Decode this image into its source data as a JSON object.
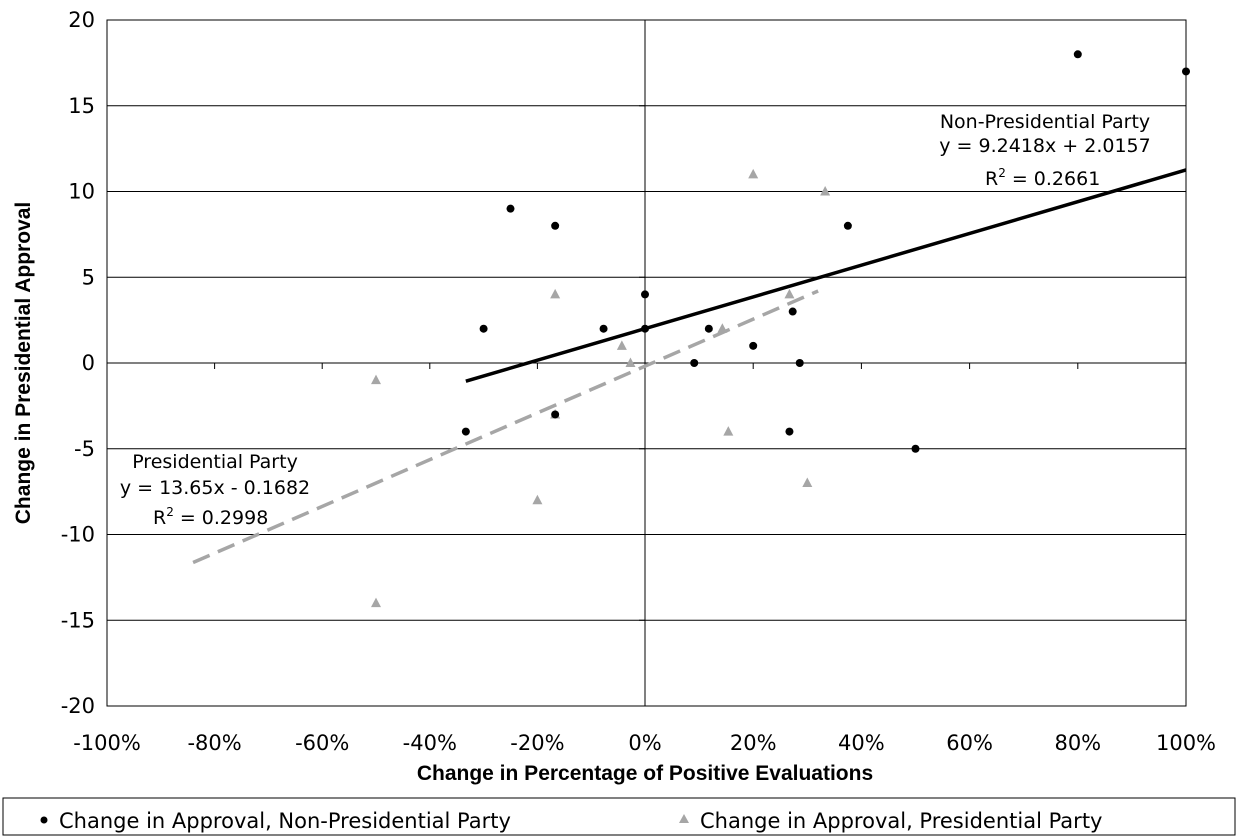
{
  "chart_data": {
    "type": "scatter",
    "title": "",
    "xlabel": "Change in Percentage of Positive Evaluations",
    "ylabel": "Change in Presidential Approval",
    "xlim": [
      -1.0,
      1.0
    ],
    "ylim": [
      -20,
      20
    ],
    "x_ticks": [
      -1.0,
      -0.8,
      -0.6,
      -0.4,
      -0.2,
      0.0,
      0.2,
      0.4,
      0.6,
      0.8,
      1.0
    ],
    "x_tick_labels": [
      "-100%",
      "-80%",
      "-60%",
      "-40%",
      "-20%",
      "0%",
      "20%",
      "40%",
      "60%",
      "80%",
      "100%"
    ],
    "y_ticks": [
      -20,
      -15,
      -10,
      -5,
      0,
      5,
      10,
      15,
      20
    ],
    "y_tick_labels": [
      "-20",
      "-15",
      "-10",
      "-5",
      "0",
      "5",
      "10",
      "15",
      "20"
    ],
    "grid": "horizontal",
    "legend_position": "bottom",
    "series": [
      {
        "name": "Change in Approval, Non-Presidential Party",
        "marker": "circle",
        "color": "#000000",
        "points": [
          {
            "x": -0.333,
            "y": -4
          },
          {
            "x": -0.3,
            "y": 2
          },
          {
            "x": -0.25,
            "y": 9
          },
          {
            "x": -0.167,
            "y": 8
          },
          {
            "x": -0.167,
            "y": -3
          },
          {
            "x": -0.077,
            "y": 2
          },
          {
            "x": 0.0,
            "y": 4
          },
          {
            "x": 0.0,
            "y": 2
          },
          {
            "x": 0.091,
            "y": 0
          },
          {
            "x": 0.118,
            "y": 2
          },
          {
            "x": 0.2,
            "y": 1
          },
          {
            "x": 0.267,
            "y": -4
          },
          {
            "x": 0.273,
            "y": 3
          },
          {
            "x": 0.286,
            "y": 0
          },
          {
            "x": 0.375,
            "y": 8
          },
          {
            "x": 0.5,
            "y": -5
          },
          {
            "x": 0.8,
            "y": 18
          },
          {
            "x": 1.0,
            "y": 17
          }
        ]
      },
      {
        "name": "Change in Approval, Presidential Party",
        "marker": "triangle",
        "color": "#a6a6a6",
        "points": [
          {
            "x": -0.5,
            "y": -1
          },
          {
            "x": -0.5,
            "y": -14
          },
          {
            "x": -0.2,
            "y": -8
          },
          {
            "x": -0.167,
            "y": 4
          },
          {
            "x": -0.167,
            "y": -3
          },
          {
            "x": -0.043,
            "y": 1
          },
          {
            "x": -0.027,
            "y": 0
          },
          {
            "x": 0.143,
            "y": 2
          },
          {
            "x": 0.154,
            "y": -4
          },
          {
            "x": 0.2,
            "y": 11
          },
          {
            "x": 0.267,
            "y": 4
          },
          {
            "x": 0.3,
            "y": -7
          },
          {
            "x": 0.333,
            "y": 10
          }
        ]
      }
    ],
    "trendlines": [
      {
        "series": "Change in Approval, Non-Presidential Party",
        "slope": 9.2418,
        "intercept": 2.0157,
        "x_range": [
          -0.333,
          1.0
        ],
        "style": "solid",
        "color": "#000000",
        "label": "Non-Presidential Party",
        "equation": "y = 9.2418x + 2.0157",
        "r2_label": "R",
        "r2_value": "= 0.2661"
      },
      {
        "series": "Change in Approval, Presidential Party",
        "slope": 13.65,
        "intercept": -0.1682,
        "x_range": [
          -0.84,
          0.32
        ],
        "style": "dashed",
        "color": "#a6a6a6",
        "label": "Presidential Party",
        "equation": "y = 13.65x - 0.1682",
        "r2_label": "R",
        "r2_value": "= 0.2998"
      }
    ]
  }
}
